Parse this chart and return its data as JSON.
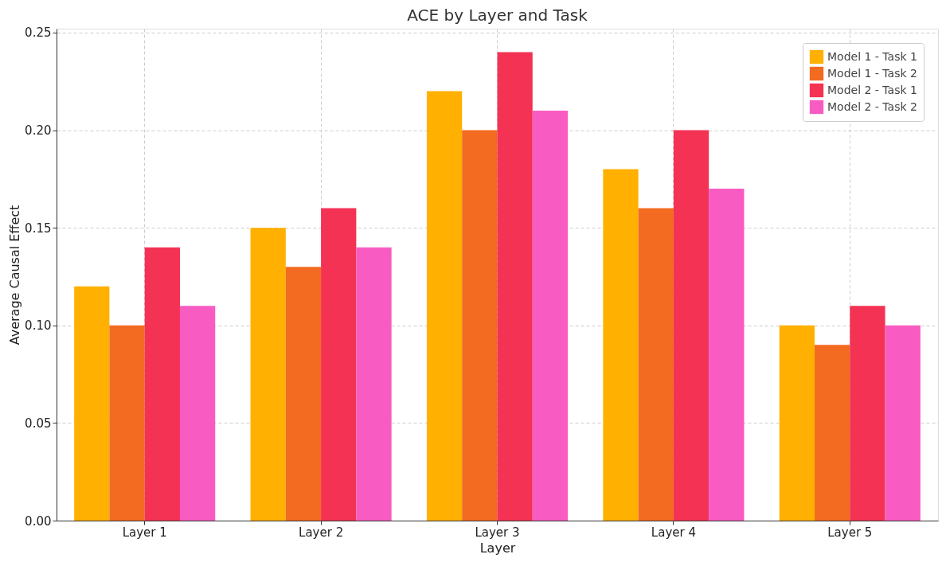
{
  "chart_data": {
    "type": "bar",
    "title": "ACE by Layer and Task",
    "xlabel": "Layer",
    "ylabel": "Average Causal Effect",
    "categories": [
      "Layer 1",
      "Layer 2",
      "Layer 3",
      "Layer 4",
      "Layer 5"
    ],
    "series": [
      {
        "name": "Model 1 - Task 1",
        "color": "#ffb000",
        "values": [
          0.12,
          0.15,
          0.22,
          0.18,
          0.1
        ]
      },
      {
        "name": "Model 1 - Task 2",
        "color": "#f26b21",
        "values": [
          0.1,
          0.13,
          0.2,
          0.16,
          0.09
        ]
      },
      {
        "name": "Model 2 - Task 1",
        "color": "#f43254",
        "values": [
          0.14,
          0.16,
          0.24,
          0.2,
          0.11
        ]
      },
      {
        "name": "Model 2 - Task 2",
        "color": "#f85cc2",
        "values": [
          0.11,
          0.14,
          0.21,
          0.17,
          0.1
        ]
      }
    ],
    "ylim": [
      0,
      0.252
    ],
    "yticks": [
      {
        "value": 0,
        "label": "0.00"
      },
      {
        "value": 0.05,
        "label": "0.05"
      },
      {
        "value": 0.1,
        "label": "0.10"
      },
      {
        "value": 0.15,
        "label": "0.15"
      },
      {
        "value": 0.2,
        "label": "0.20"
      },
      {
        "value": 0.25,
        "label": "0.25"
      }
    ],
    "grid": true,
    "legend": "top right"
  }
}
